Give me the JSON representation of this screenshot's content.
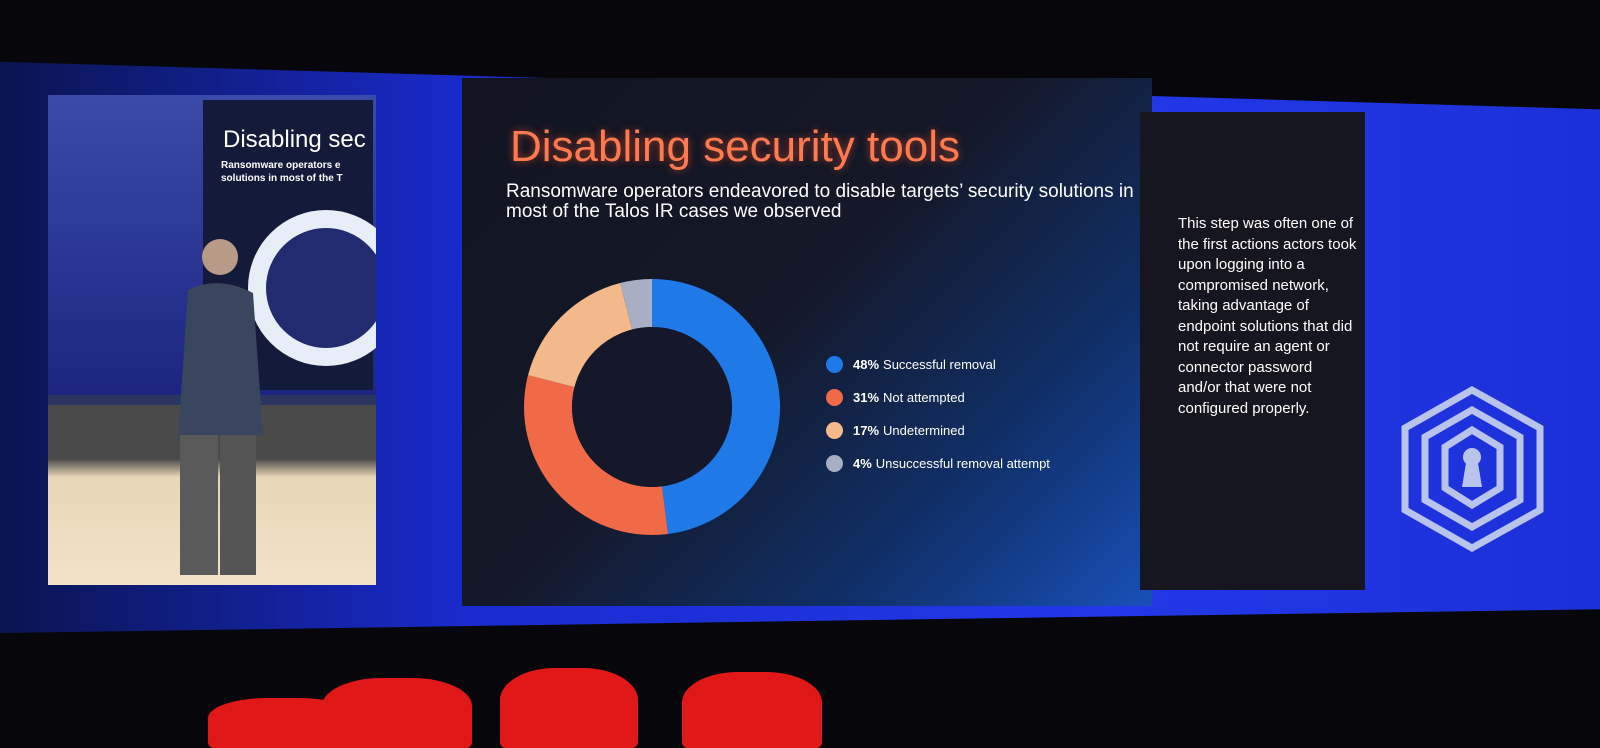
{
  "slide": {
    "title": "Disabling security tools",
    "subtitle": "Ransomware operators endeavored to disable targets’ security solutions in most of the Talos IR cases we observed",
    "side_note": "This step was often one of the first actions actors took upon logging into a compromised network, taking advantage of endpoint solutions that did not require an agent or connector password and/or that were not configured properly."
  },
  "video_feed": {
    "slide_title": "Disabling sec",
    "slide_subtitle_1": "Ransomware operators e",
    "slide_subtitle_2": "solutions in most of the T"
  },
  "logo_icon": "hexagon-keyhole-maze-icon",
  "chart_data": {
    "type": "pie",
    "donut": true,
    "title": "",
    "slices": [
      {
        "label": "Successful removal",
        "pct_label": "48%",
        "value": 48,
        "color": "#1f7ae8"
      },
      {
        "label": "Not attempted",
        "pct_label": "31%",
        "value": 31,
        "color": "#f06a48"
      },
      {
        "label": "Undetermined",
        "pct_label": "17%",
        "value": 17,
        "color": "#f4b98a"
      },
      {
        "label": "Unsuccessful removal attempt",
        "pct_label": "4%",
        "value": 4,
        "color": "#a8aec4"
      }
    ],
    "legend_placement": "right"
  }
}
